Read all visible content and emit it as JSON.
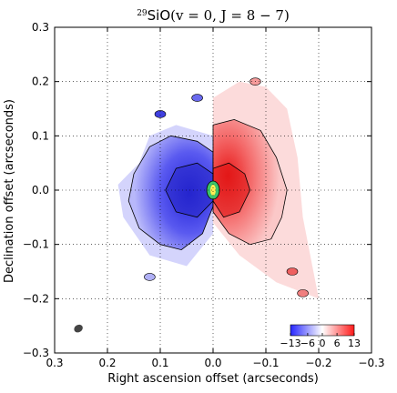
{
  "chart_data": {
    "type": "heatmap",
    "title": {
      "superscript": "29",
      "molecule": "SiO",
      "transition": "(v = 0,  J = 8 − 7)"
    },
    "xlabel": "Right ascension offset (arcseconds)",
    "ylabel": "Declination offset (arcseconds)",
    "xlim": [
      0.3,
      -0.3
    ],
    "ylim": [
      -0.3,
      0.3
    ],
    "xticks": [
      0.3,
      0.2,
      0.1,
      0.0,
      -0.1,
      -0.2,
      -0.3
    ],
    "xtick_labels": [
      "0.3",
      "0.2",
      "0.1",
      "0.0",
      "−0.1",
      "−0.2",
      "−0.3"
    ],
    "yticks": [
      -0.3,
      -0.2,
      -0.1,
      0.0,
      0.1,
      0.2,
      0.3
    ],
    "ytick_labels": [
      "−0.3",
      "−0.2",
      "−0.1",
      "0.0",
      "0.1",
      "0.2",
      "0.3"
    ],
    "grid": true,
    "colorbar": {
      "placement": "bottom-right",
      "ticks": [
        -13,
        -6,
        0,
        6,
        13
      ],
      "tick_labels": [
        "−13",
        "−6",
        "0",
        "6",
        "13"
      ],
      "low_color": "#2b2bff",
      "mid_color": "#ffffff",
      "high_color": "#ff1a1a"
    },
    "blueshifted_lobe": {
      "center": [
        0.07,
        0.0
      ],
      "extent_x": [
        0.0,
        0.18
      ],
      "extent_y": [
        -0.12,
        0.12
      ],
      "color": "#3b3bef"
    },
    "redshifted_lobe": {
      "center": [
        -0.06,
        0.0
      ],
      "extent_x": [
        -0.18,
        0.0
      ],
      "extent_y": [
        -0.2,
        0.14
      ],
      "color": "#f04545"
    },
    "central_source": {
      "x": 0.0,
      "y": 0.0,
      "color": "#3cc36a"
    },
    "beam": {
      "x": 0.255,
      "y": -0.255,
      "color": "#444444"
    }
  }
}
